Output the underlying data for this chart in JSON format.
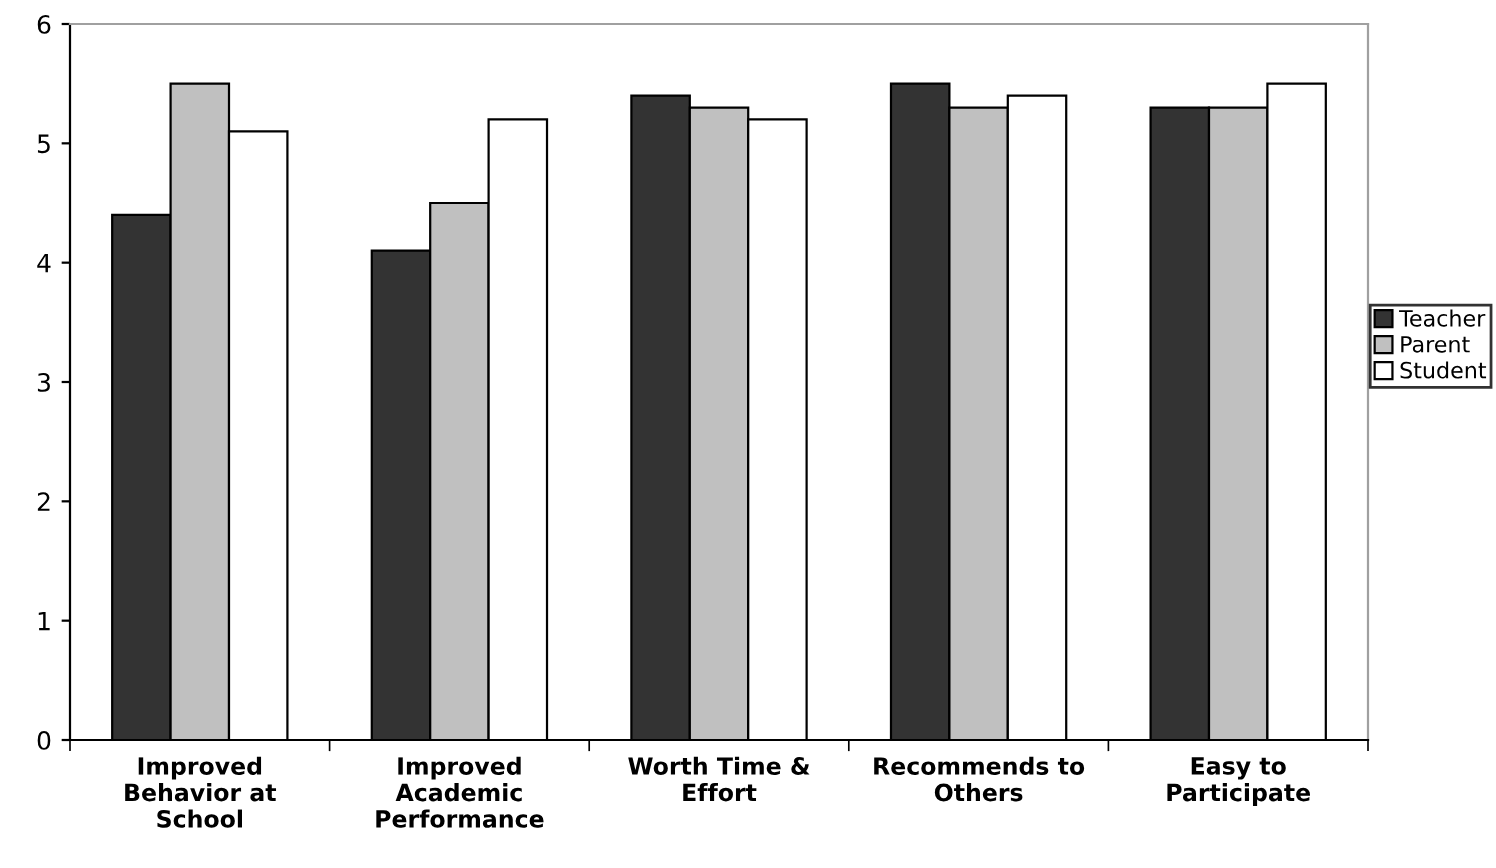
{
  "chart_data": {
    "type": "bar",
    "categories": [
      "Improved\nBehavior at\nSchool",
      "Improved\nAcademic\nPerformance",
      "Worth Time &\nEffort",
      "Recommends to\nOthers",
      "Easy to\nParticipate"
    ],
    "series": [
      {
        "name": "Teacher",
        "color": "#333333",
        "values": [
          4.4,
          4.1,
          5.4,
          5.5,
          5.3
        ]
      },
      {
        "name": "Parent",
        "color": "#c0c0c0",
        "values": [
          5.5,
          4.5,
          5.3,
          5.3,
          5.3
        ]
      },
      {
        "name": "Student",
        "color": "#ffffff",
        "values": [
          5.1,
          5.2,
          5.2,
          5.4,
          5.5
        ]
      }
    ],
    "ylim": [
      0,
      6
    ],
    "yticks": [
      0,
      1,
      2,
      3,
      4,
      5,
      6
    ],
    "grid": false,
    "legend": "right"
  }
}
